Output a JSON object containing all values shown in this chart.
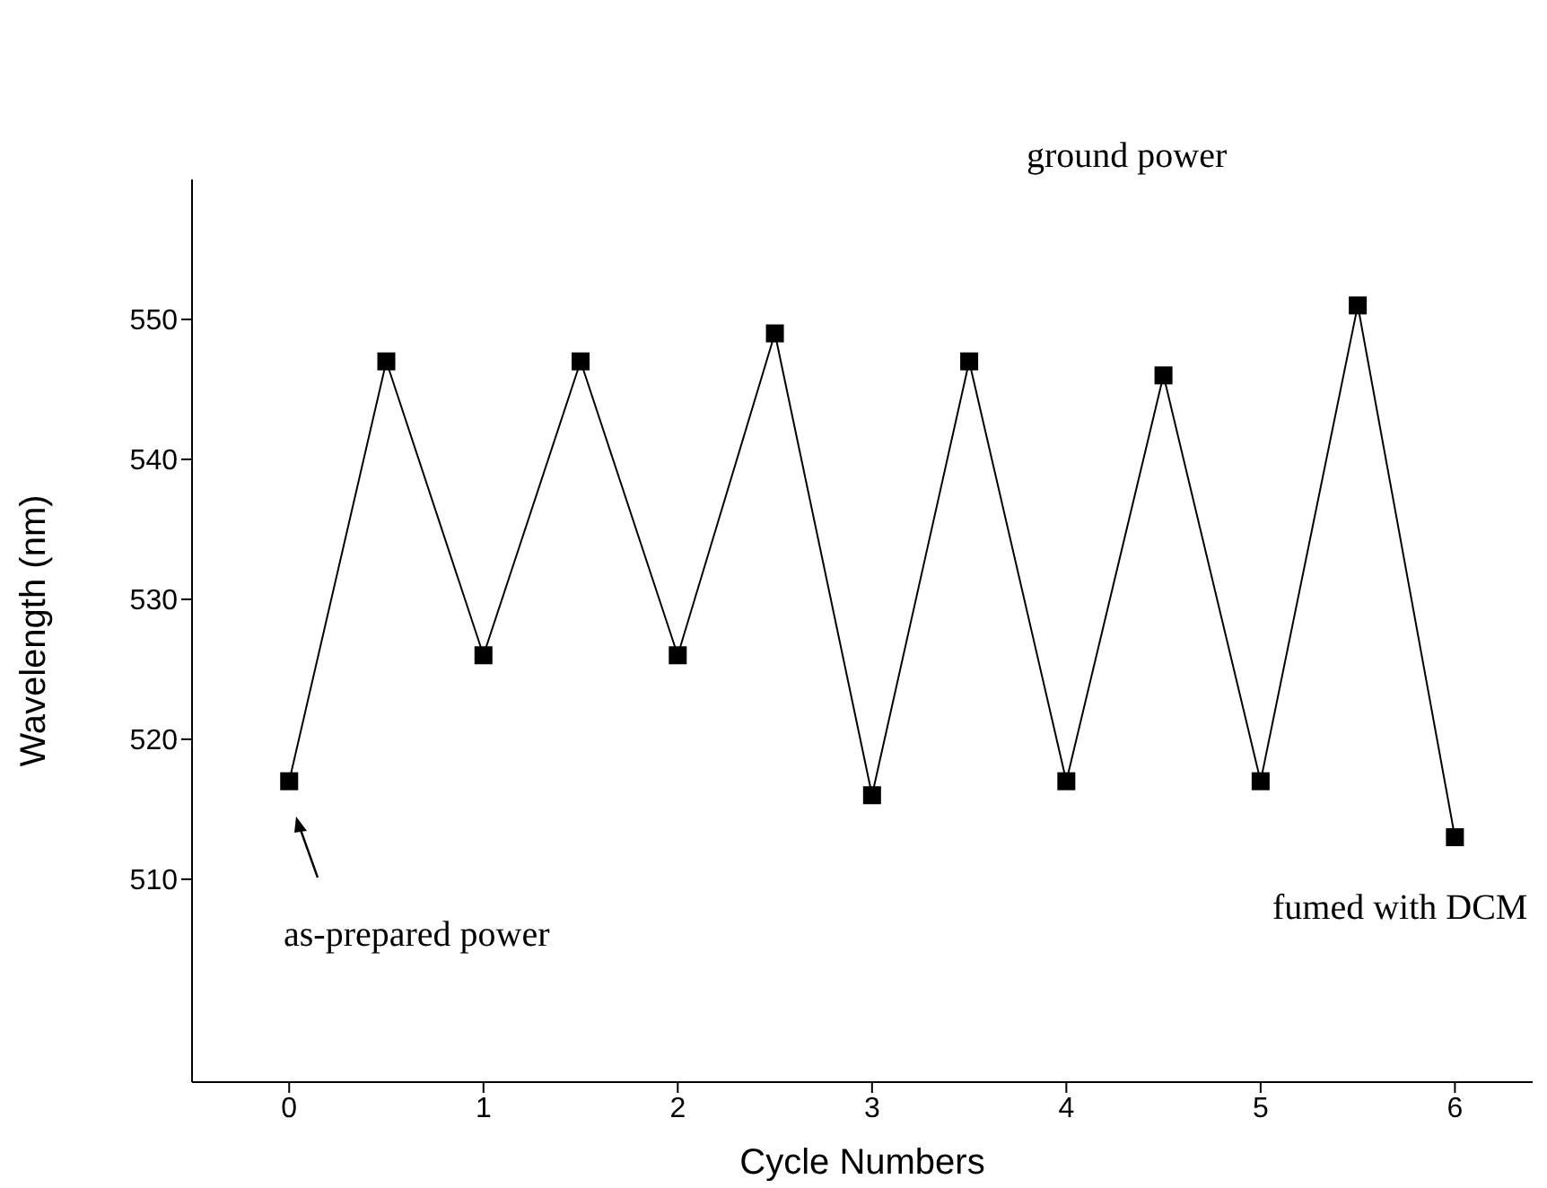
{
  "chart_data": {
    "type": "line",
    "xlabel": "Cycle Numbers",
    "ylabel": "Wavelength (nm)",
    "x": [
      0,
      0.5,
      1,
      1.5,
      2,
      2.5,
      3,
      3.5,
      4,
      4.5,
      5,
      5.5,
      6
    ],
    "series": [
      {
        "color": "#000000",
        "values": [
          517,
          547,
          526,
          547,
          526,
          549,
          516,
          547,
          517,
          546,
          517,
          551,
          513
        ]
      }
    ],
    "xlim": [
      -0.5,
      6.4
    ],
    "xticks": [
      0,
      1,
      2,
      3,
      4,
      5,
      6
    ],
    "ylim": [
      495.5,
      560
    ],
    "yticks": [
      510,
      520,
      530,
      540,
      550
    ],
    "marker": "square",
    "line_style": "solid",
    "grid": false,
    "annotations": [
      "ground power",
      "fumed with DCM",
      "as-prepared power"
    ]
  }
}
